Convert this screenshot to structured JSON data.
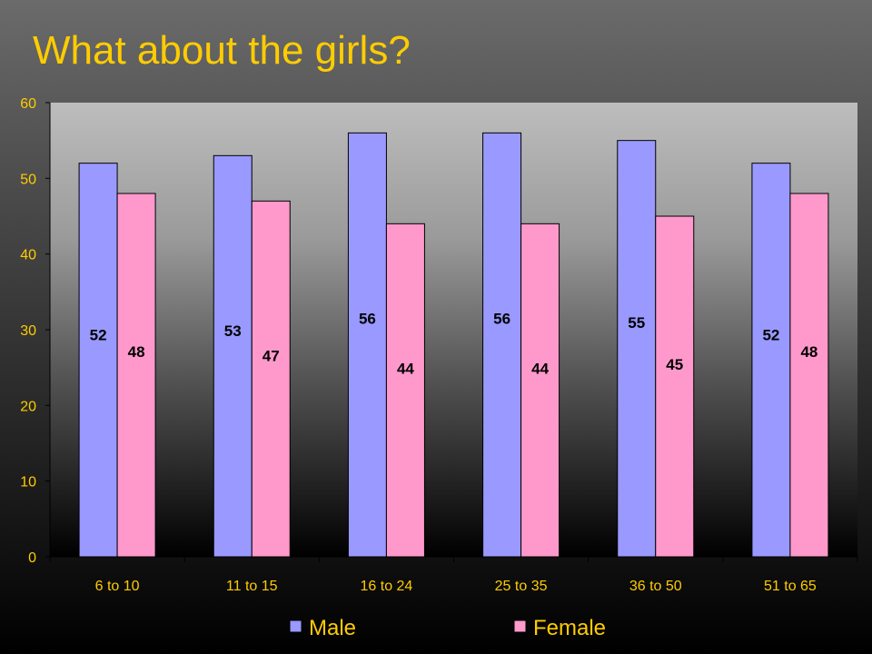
{
  "slide": {
    "title": "What about the girls?"
  },
  "colors": {
    "title": "#ffcc00",
    "axis_text": "#ffcc00",
    "plot_background_top": "#bdbdbd",
    "plot_background_bottom": "#000000",
    "male": "#9999ff",
    "female": "#ff99cc"
  },
  "chart_data": {
    "type": "bar",
    "title": "",
    "xlabel": "",
    "ylabel": "",
    "categories": [
      "6 to 10",
      "11 to 15",
      "16 to 24",
      "25 to 35",
      "36 to 50",
      "51 to 65"
    ],
    "series": [
      {
        "name": "Male",
        "values": [
          52,
          53,
          56,
          56,
          55,
          52
        ],
        "color": "#9999ff"
      },
      {
        "name": "Female",
        "values": [
          48,
          47,
          44,
          44,
          45,
          48
        ],
        "color": "#ff99cc"
      }
    ],
    "ylim": [
      0,
      60
    ],
    "yticks": [
      0,
      10,
      20,
      30,
      40,
      50,
      60
    ],
    "grid": false,
    "data_labels": true,
    "legend_position": "bottom"
  }
}
